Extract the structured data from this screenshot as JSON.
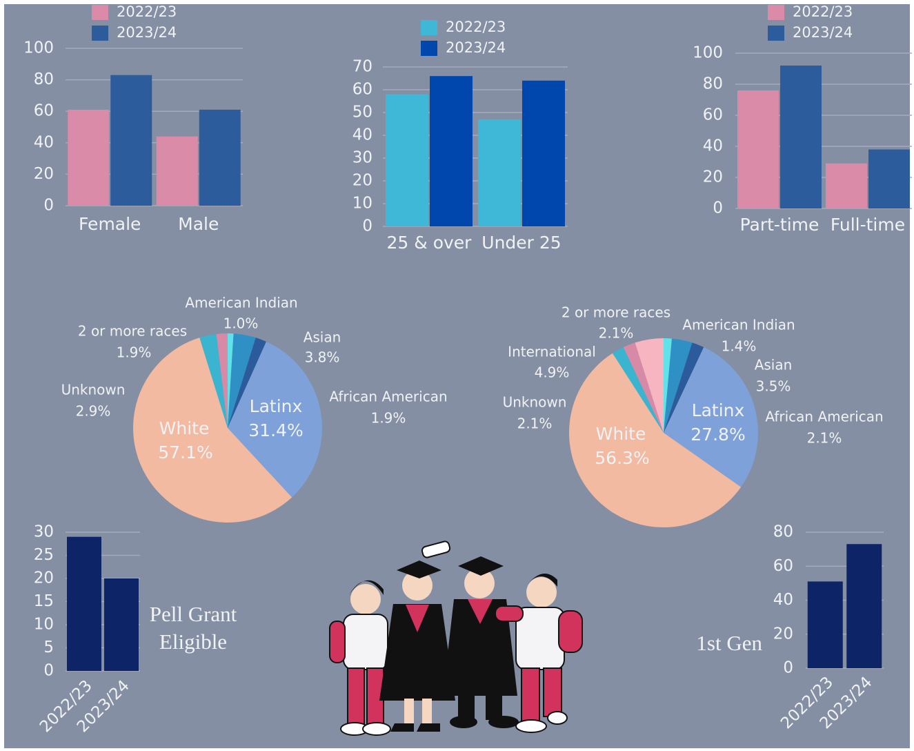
{
  "chart_data": [
    {
      "type": "bar",
      "categories": [
        "Female",
        "Male"
      ],
      "series": [
        {
          "name": "2022/23",
          "color": "#d98ba8",
          "values": [
            61,
            44
          ]
        },
        {
          "name": "2023/24",
          "color": "#2c5c9b",
          "values": [
            83,
            61
          ]
        }
      ],
      "ylim": [
        0,
        100
      ],
      "yticks": [
        0,
        20,
        40,
        60,
        80,
        100
      ],
      "grid": true
    },
    {
      "type": "bar",
      "categories": [
        "25 & over",
        "Under 25"
      ],
      "series": [
        {
          "name": "2022/23",
          "color": "#3fb8d8",
          "values": [
            58,
            47
          ]
        },
        {
          "name": "2023/24",
          "color": "#0047ad",
          "values": [
            66,
            64
          ]
        }
      ],
      "ylim": [
        0,
        70
      ],
      "yticks": [
        0,
        10,
        20,
        30,
        40,
        50,
        60,
        70
      ],
      "grid": true
    },
    {
      "type": "bar",
      "categories": [
        "Part-time",
        "Full-time"
      ],
      "series": [
        {
          "name": "2022/23",
          "color": "#d98ba8",
          "values": [
            76,
            29
          ]
        },
        {
          "name": "2023/24",
          "color": "#2c5c9b",
          "values": [
            92,
            38
          ]
        }
      ],
      "ylim": [
        0,
        100
      ],
      "yticks": [
        0,
        20,
        40,
        60,
        80,
        100
      ],
      "grid": true
    },
    {
      "type": "pie",
      "categories": [
        "American Indian",
        "Asian",
        "African American",
        "Latinx",
        "White",
        "Unknown",
        "2 or more races"
      ],
      "values": [
        1.0,
        3.8,
        1.9,
        31.4,
        57.1,
        2.9,
        1.9
      ],
      "value_labels": [
        "1.0%",
        "3.8%",
        "1.9%",
        "31.4%",
        "57.1%",
        "2.9%",
        "1.9%"
      ],
      "colors": [
        "#5fe3e8",
        "#2f90c6",
        "#2b5b9b",
        "#7da1d8",
        "#f2baa0",
        "#3bb5cf",
        "#d68aa6"
      ]
    },
    {
      "type": "pie",
      "categories": [
        "American Indian",
        "Asian",
        "African American",
        "Latinx",
        "White",
        "Unknown",
        "2 or more races",
        "International"
      ],
      "values": [
        1.4,
        3.5,
        2.1,
        27.8,
        56.3,
        2.1,
        2.1,
        4.9
      ],
      "value_labels": [
        "1.4%",
        "3.5%",
        "2.1%",
        "27.8%",
        "56.3%",
        "2.1%",
        "2.1%",
        "4.9%"
      ],
      "colors": [
        "#5fe3e8",
        "#2f90c6",
        "#2b5b9b",
        "#7da1d8",
        "#f2baa0",
        "#3bb5cf",
        "#d68aa6",
        "#f7b5c2"
      ]
    },
    {
      "type": "bar",
      "label": "Pell Grant Eligible",
      "categories": [
        "2022/23",
        "2023/24"
      ],
      "values": [
        29,
        20
      ],
      "color": "#0d2466",
      "ylim": [
        0,
        30
      ],
      "yticks": [
        0,
        5,
        10,
        15,
        20,
        25,
        30
      ],
      "grid": true
    },
    {
      "type": "bar",
      "label": "1st Gen",
      "categories": [
        "2022/23",
        "2023/24"
      ],
      "values": [
        51,
        73
      ],
      "color": "#0d2466",
      "ylim": [
        0,
        80
      ],
      "yticks": [
        0,
        20,
        40,
        60,
        80
      ],
      "grid": true
    }
  ]
}
